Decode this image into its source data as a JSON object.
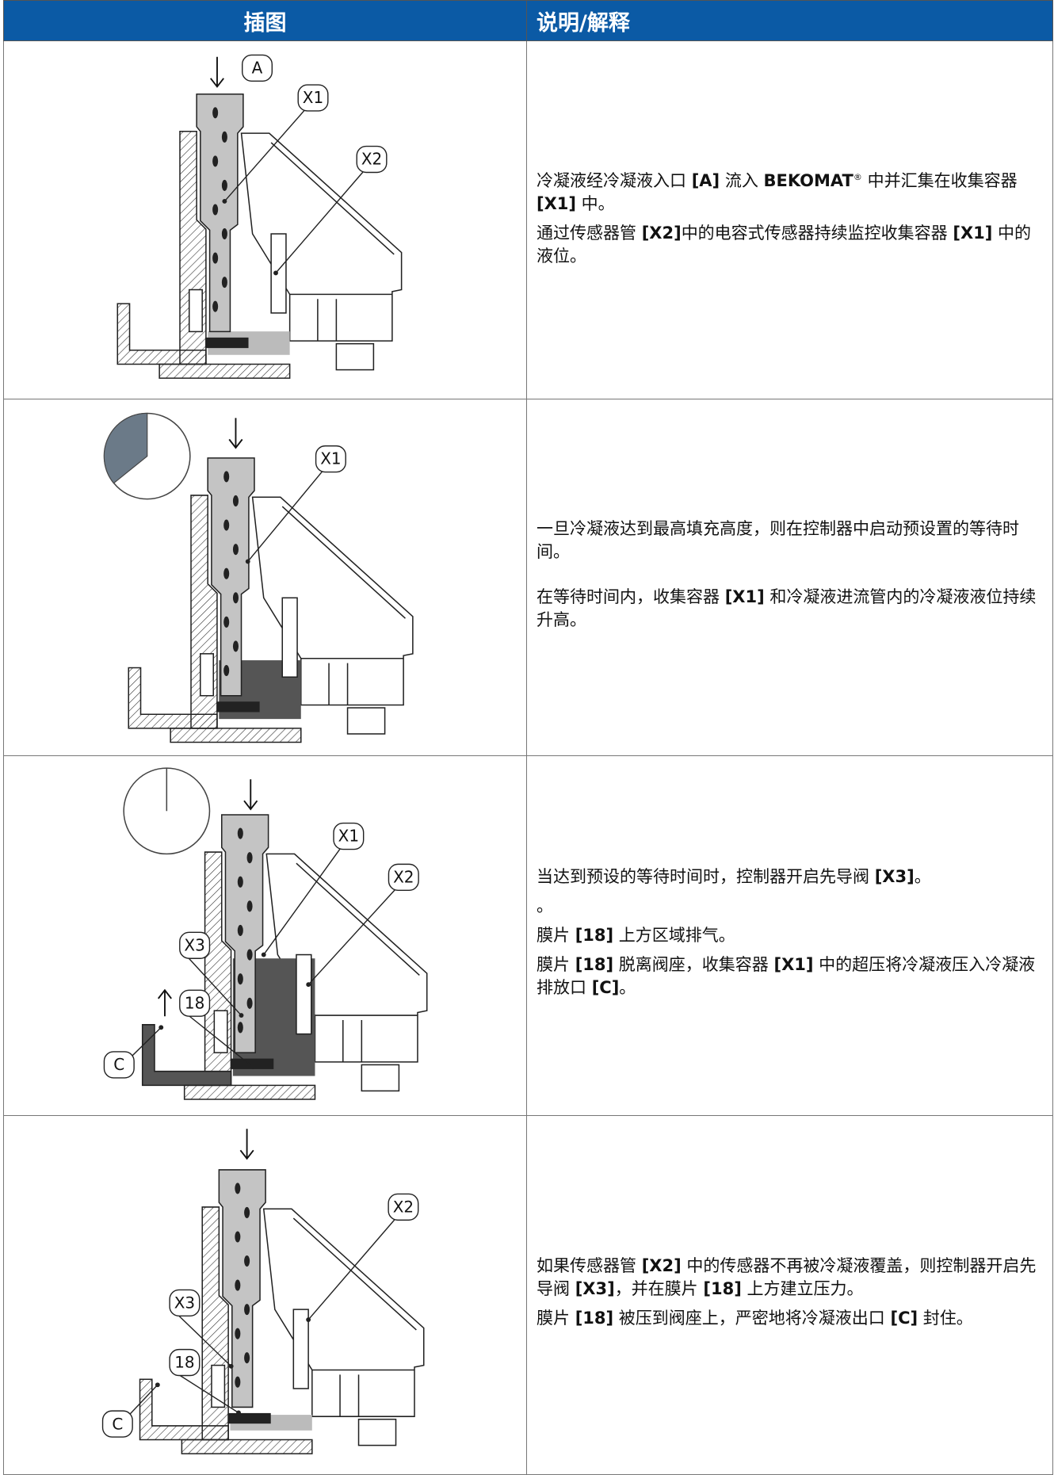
{
  "header": {
    "illustration": "插图",
    "explanation": "说明/解释"
  },
  "rows": [
    {
      "labels": [
        "A",
        "X1",
        "X2"
      ],
      "paragraphs": [
        [
          {
            "text": "冷凝液经冷凝液入口 "
          },
          {
            "text": "[A]",
            "bold": true
          },
          {
            "text": " 流入 "
          },
          {
            "text": "BEKOMAT",
            "bold": true
          },
          {
            "text": "®",
            "sup": true
          },
          {
            "text": " 中并汇集在收集容器 "
          },
          {
            "text": "[X1]",
            "bold": true
          },
          {
            "text": " 中。"
          }
        ],
        [
          {
            "text": "通过传感器管 "
          },
          {
            "text": "[X2]",
            "bold": true
          },
          {
            "text": "中的电容式传感器持续监控收集容器 "
          },
          {
            "text": "[X1]",
            "bold": true
          },
          {
            "text": " 中的液位。"
          }
        ]
      ]
    },
    {
      "labels": [
        "X1"
      ],
      "paragraphs": [
        [
          {
            "text": "一旦冷凝液达到最高填充高度，则在控制器中启动预设置的等待时间。"
          }
        ],
        [
          {
            "text": "在等待时间内，收集容器 "
          },
          {
            "text": "[X1]",
            "bold": true
          },
          {
            "text": " 和冷凝液进流管内的冷凝液液位持续升高。"
          }
        ]
      ]
    },
    {
      "labels": [
        "X1",
        "X2",
        "X3",
        "18",
        "C"
      ],
      "paragraphs": [
        [
          {
            "text": "当达到预设的等待时间时，控制器开启先导阀 "
          },
          {
            "text": "[X3]",
            "bold": true
          },
          {
            "text": "。"
          }
        ],
        [
          {
            "text": "。"
          }
        ],
        [
          {
            "text": "膜片 "
          },
          {
            "text": "[18]",
            "bold": true
          },
          {
            "text": " 上方区域排气。"
          }
        ],
        [
          {
            "text": "膜片 "
          },
          {
            "text": "[18]",
            "bold": true
          },
          {
            "text": " 脱离阀座，收集容器 "
          },
          {
            "text": "[X1]",
            "bold": true
          },
          {
            "text": " 中的超压将冷凝液压入冷凝液排放口 "
          },
          {
            "text": "[C]",
            "bold": true
          },
          {
            "text": "。"
          }
        ]
      ]
    },
    {
      "labels": [
        "X2",
        "X3",
        "18",
        "C"
      ],
      "paragraphs": [
        [
          {
            "text": "如果传感器管 "
          },
          {
            "text": "[X2]",
            "bold": true
          },
          {
            "text": " 中的传感器不再被冷凝液覆盖，则控制器开启先导阀 "
          },
          {
            "text": "[X3]",
            "bold": true
          },
          {
            "text": "，并在膜片 "
          },
          {
            "text": "[18]",
            "bold": true
          },
          {
            "text": " 上方建立压力。"
          }
        ],
        [
          {
            "text": "膜片 "
          },
          {
            "text": "[18]",
            "bold": true
          },
          {
            "text": " 被压到阀座上，严密地将冷凝液出口 "
          },
          {
            "text": "[C]",
            "bold": true
          },
          {
            "text": " 封住。"
          }
        ]
      ]
    }
  ]
}
